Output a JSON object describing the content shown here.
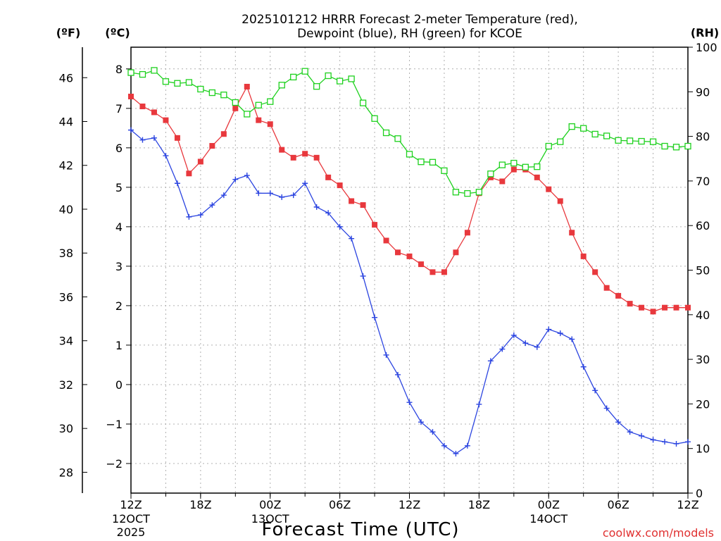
{
  "chart_data": {
    "type": "line",
    "title_line1": "2025101212 HRRR Forecast 2-meter Temperature (red),",
    "title_line2": "Dewpoint (blue), RH (green) for KCOE",
    "xlabel": "Forecast Time (UTC)",
    "watermark": "coolwx.com/models",
    "left_outer_label": "(ºF)",
    "left_inner_label": "(ºC)",
    "right_label": "(RH)",
    "x_range_hours": [
      0,
      48
    ],
    "y_c_range": [
      -2.75,
      8.55
    ],
    "y_rh_range": [
      0,
      100
    ],
    "grid": true,
    "x_ticks": [
      {
        "hour": 0,
        "label": "12Z",
        "sub1": "12OCT",
        "sub2": "2025"
      },
      {
        "hour": 6,
        "label": "18Z",
        "sub1": "",
        "sub2": ""
      },
      {
        "hour": 12,
        "label": "00Z",
        "sub1": "13OCT",
        "sub2": ""
      },
      {
        "hour": 18,
        "label": "06Z",
        "sub1": "",
        "sub2": ""
      },
      {
        "hour": 24,
        "label": "12Z",
        "sub1": "",
        "sub2": ""
      },
      {
        "hour": 30,
        "label": "18Z",
        "sub1": "",
        "sub2": ""
      },
      {
        "hour": 36,
        "label": "00Z",
        "sub1": "14OCT",
        "sub2": ""
      },
      {
        "hour": 42,
        "label": "06Z",
        "sub1": "",
        "sub2": ""
      },
      {
        "hour": 48,
        "label": "12Z",
        "sub1": "",
        "sub2": ""
      }
    ],
    "y_c_ticks": [
      -2,
      -1,
      0,
      1,
      2,
      3,
      4,
      5,
      6,
      7,
      8
    ],
    "y_f_ticks": [
      28,
      30,
      32,
      34,
      36,
      38,
      40,
      42,
      44,
      46
    ],
    "y_rh_ticks": [
      0,
      10,
      20,
      30,
      40,
      50,
      60,
      70,
      80,
      90,
      100
    ],
    "hours": [
      0,
      1,
      2,
      3,
      4,
      5,
      6,
      7,
      8,
      9,
      10,
      11,
      12,
      13,
      14,
      15,
      16,
      17,
      18,
      19,
      20,
      21,
      22,
      23,
      24,
      25,
      26,
      27,
      28,
      29,
      30,
      31,
      32,
      33,
      34,
      35,
      36,
      37,
      38,
      39,
      40,
      41,
      42,
      43,
      44,
      45,
      46,
      47,
      48
    ],
    "series": [
      {
        "name": "Temperature",
        "unit": "C",
        "color": "#e8383d",
        "marker": "filled-square",
        "values": [
          7.3,
          7.05,
          6.9,
          6.7,
          6.25,
          5.35,
          5.65,
          6.05,
          6.35,
          7.0,
          7.55,
          6.7,
          6.6,
          5.95,
          5.75,
          5.85,
          5.75,
          5.25,
          5.05,
          4.65,
          4.55,
          4.05,
          3.65,
          3.35,
          3.25,
          3.05,
          2.85,
          2.85,
          3.35,
          3.85,
          4.85,
          5.25,
          5.15,
          5.45,
          5.45,
          5.25,
          4.95,
          4.65,
          3.85,
          3.25,
          2.85,
          2.45,
          2.25,
          2.05,
          1.95,
          1.85,
          1.95,
          1.95,
          1.95
        ]
      },
      {
        "name": "Dewpoint",
        "unit": "C",
        "color": "#2b44e0",
        "marker": "plus",
        "values": [
          6.45,
          6.2,
          6.25,
          5.8,
          5.1,
          4.25,
          4.3,
          4.55,
          4.8,
          5.2,
          5.3,
          4.85,
          4.85,
          4.75,
          4.8,
          5.1,
          4.5,
          4.35,
          4.0,
          3.7,
          2.75,
          1.7,
          0.75,
          0.25,
          -0.45,
          -0.95,
          -1.2,
          -1.55,
          -1.75,
          -1.55,
          -0.5,
          0.6,
          0.9,
          1.25,
          1.05,
          0.95,
          1.4,
          1.3,
          1.15,
          0.45,
          -0.15,
          -0.6,
          -0.95,
          -1.2,
          -1.3,
          -1.4,
          -1.45,
          -1.5,
          -1.45
        ]
      },
      {
        "name": "RH",
        "unit": "%",
        "color": "#1ed11e",
        "marker": "open-square",
        "values": [
          94.3,
          93.9,
          94.8,
          92.3,
          91.9,
          92.1,
          90.6,
          89.8,
          89.3,
          87.6,
          85.0,
          87.0,
          87.8,
          91.5,
          93.3,
          94.6,
          91.2,
          93.6,
          92.4,
          92.9,
          87.5,
          84.0,
          80.8,
          79.5,
          76.0,
          74.3,
          74.2,
          72.3,
          67.5,
          67.2,
          67.5,
          71.6,
          73.6,
          74.0,
          73.1,
          73.2,
          77.8,
          78.8,
          82.2,
          81.8,
          80.5,
          80.1,
          79.1,
          79.0,
          78.9,
          78.8,
          77.8,
          77.6,
          77.8
        ]
      }
    ]
  }
}
